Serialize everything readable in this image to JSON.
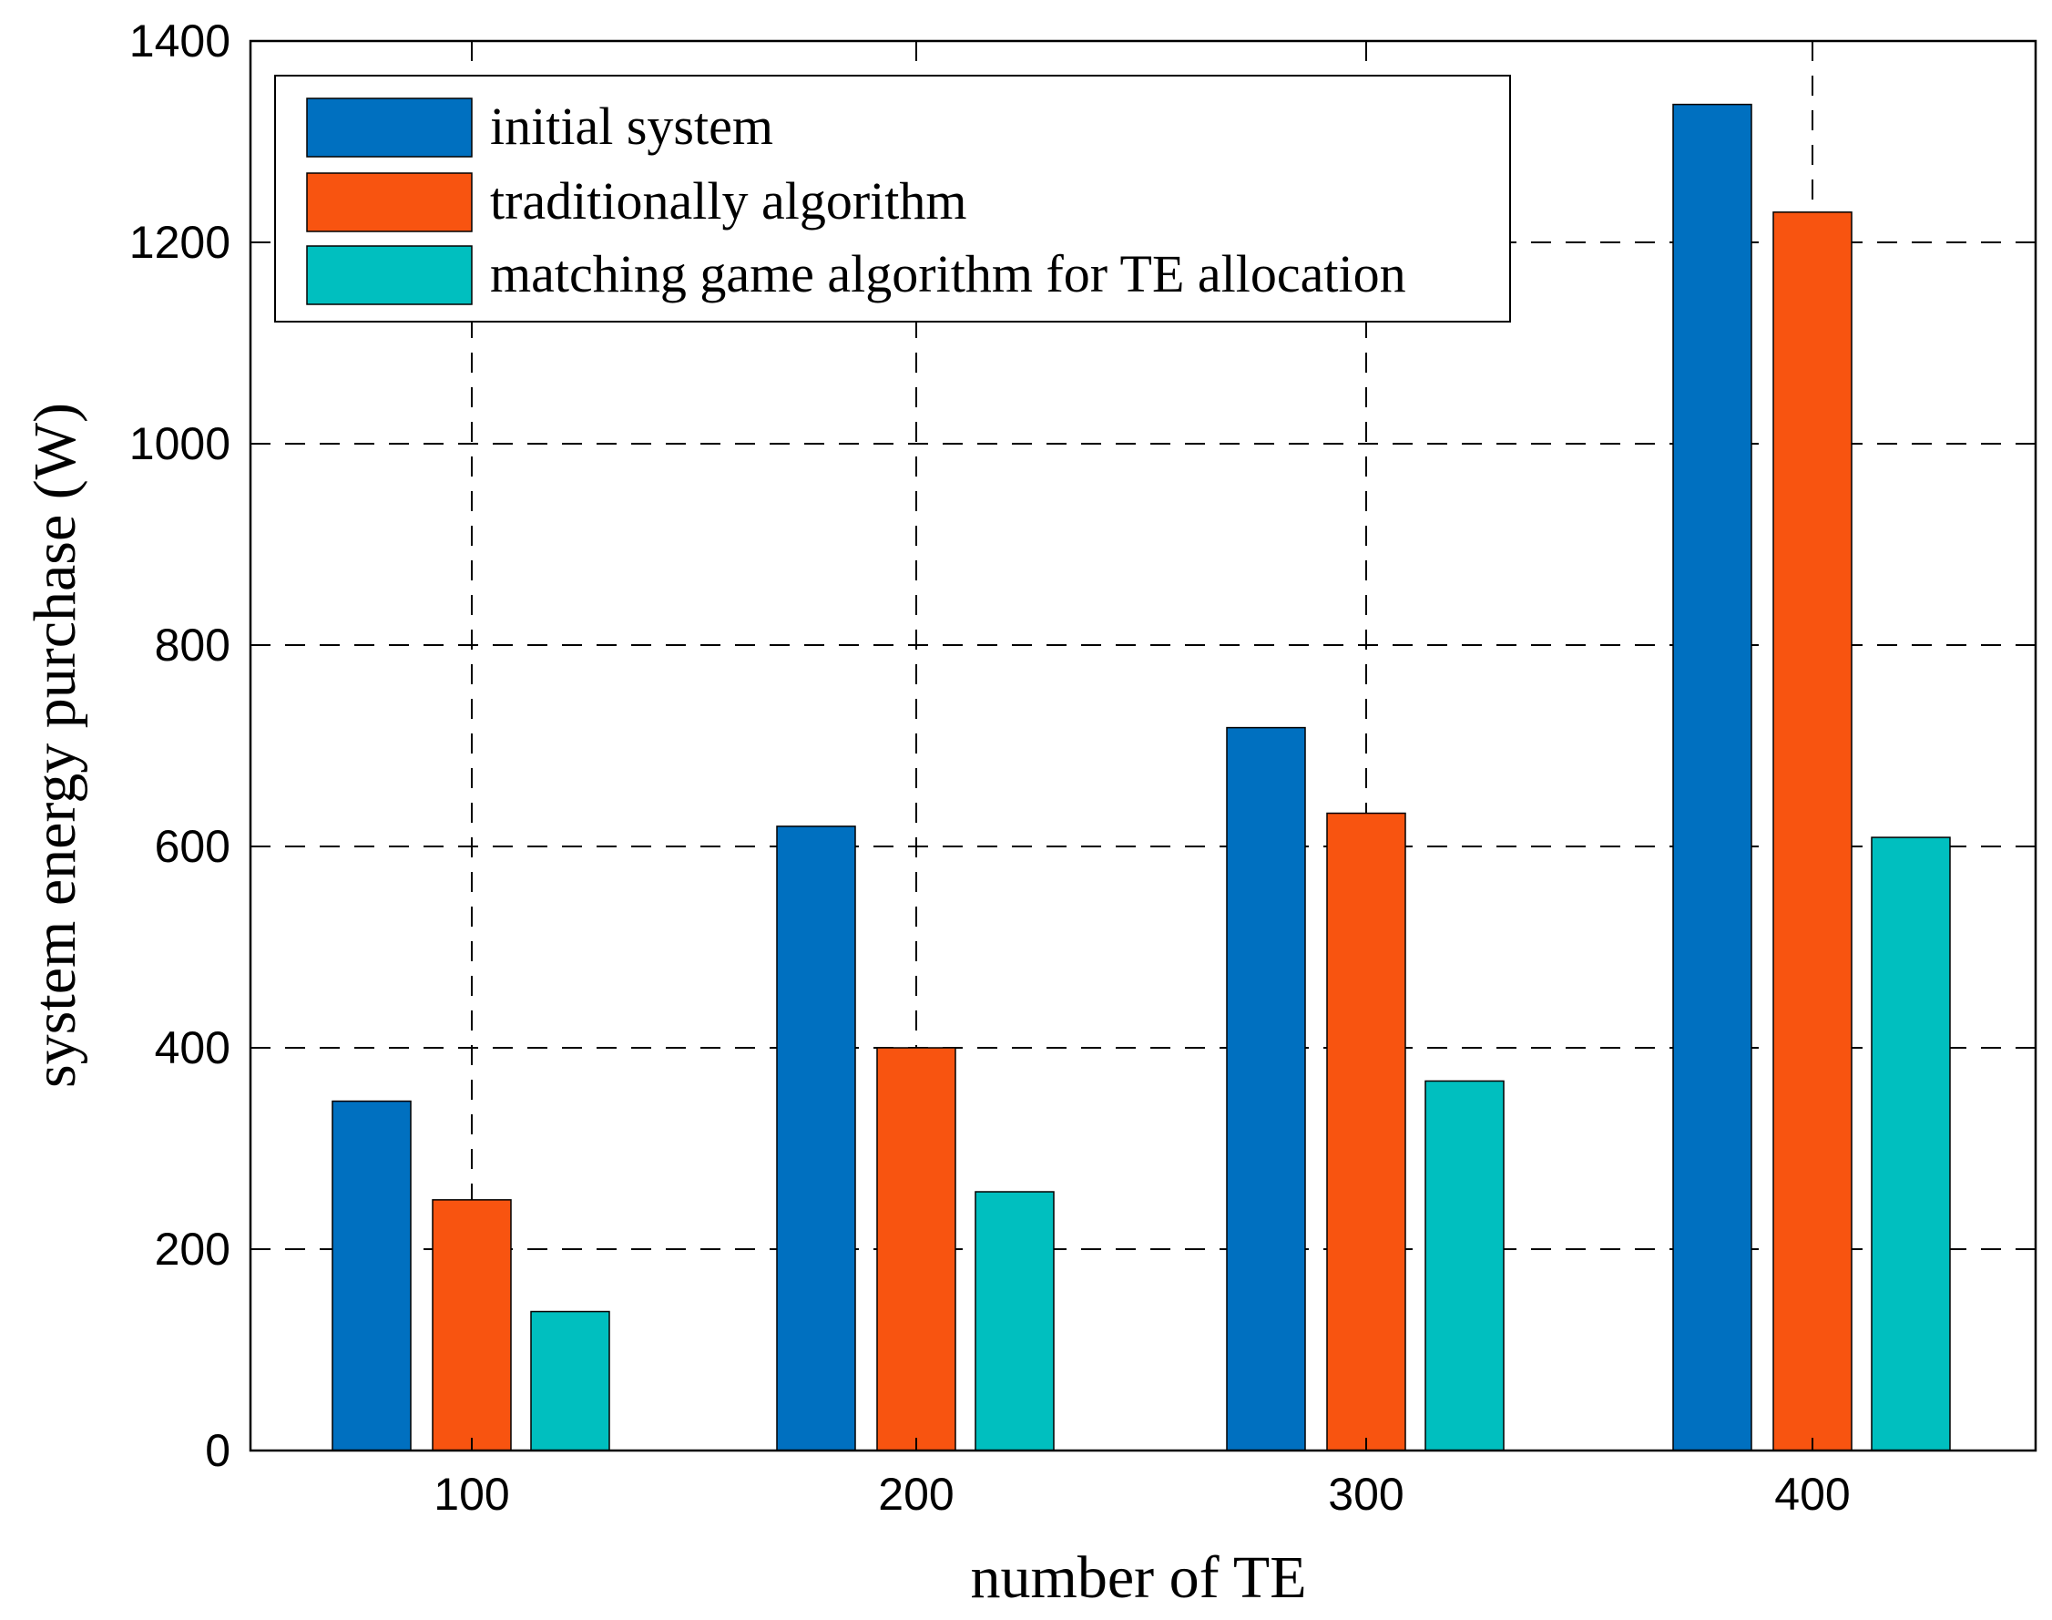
{
  "chart_data": {
    "type": "bar",
    "categories": [
      "100",
      "200",
      "300",
      "400"
    ],
    "series": [
      {
        "name": "initial system",
        "color": "#0070C0",
        "values": [
          347,
          620,
          718,
          1337
        ]
      },
      {
        "name": "traditionally algorithm",
        "color": "#F85410",
        "values": [
          249,
          400,
          633,
          1230
        ]
      },
      {
        "name": "matching game algorithm for TE allocation",
        "color": "#00BFBF",
        "values": [
          138,
          257,
          367,
          609
        ]
      }
    ],
    "title": "",
    "xlabel": "number of TE",
    "ylabel": "system  energy purchase (W)",
    "ylim": [
      0,
      1400
    ],
    "yticks": [
      "0",
      "200",
      "400",
      "600",
      "800",
      "1000",
      "1200",
      "1400"
    ],
    "grid": true,
    "legend_position": "top-left"
  }
}
